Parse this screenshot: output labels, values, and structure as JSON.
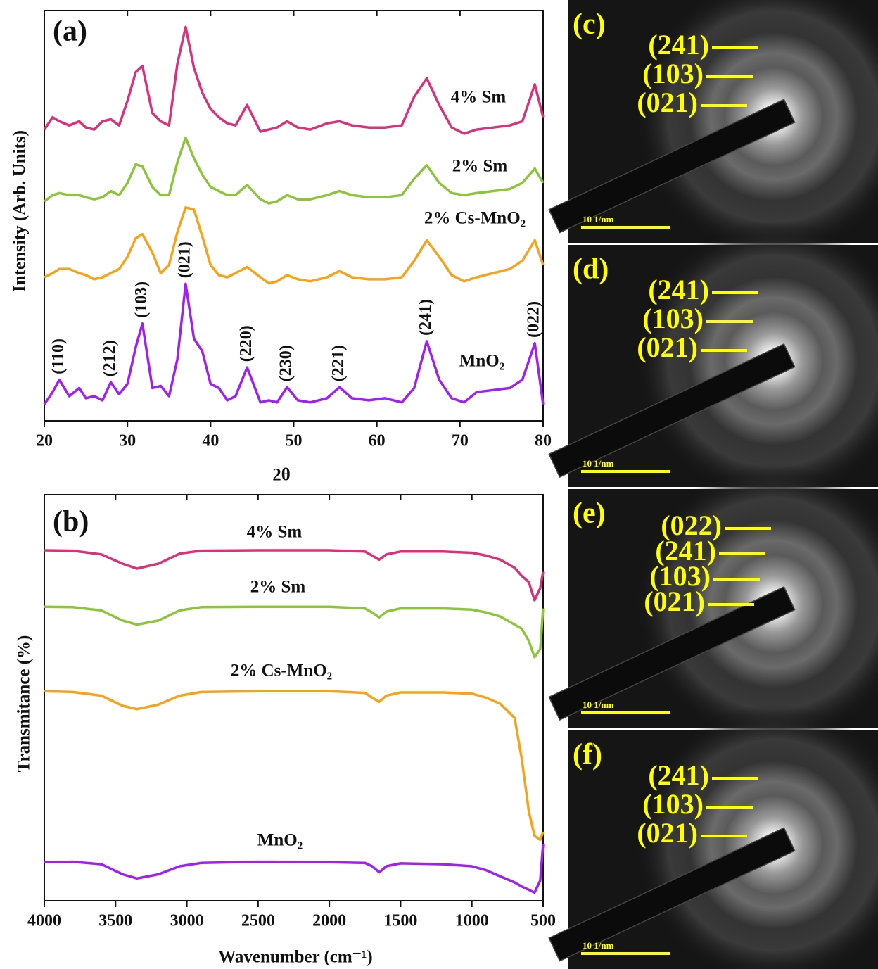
{
  "chart_data": [
    {
      "type": "line",
      "label": "(a)",
      "x_label": "2θ",
      "y_label": "Intensity (Arb. Units)",
      "xlim": [
        20,
        80
      ],
      "xticks": [
        20,
        30,
        40,
        50,
        60,
        70,
        80
      ],
      "ylim": [
        0,
        100
      ],
      "x": [
        20,
        21,
        21.8,
        23,
        24.2,
        25,
        26,
        27,
        28,
        29,
        30,
        31,
        31.8,
        33,
        34,
        35,
        36,
        37,
        38,
        39,
        40,
        41,
        42,
        43,
        44.4,
        46,
        47,
        48,
        49.2,
        50.5,
        52,
        54,
        55.5,
        57,
        59,
        61,
        63,
        64.5,
        66,
        67.5,
        69,
        70.5,
        72,
        74,
        76,
        77.5,
        79,
        80
      ],
      "series": [
        {
          "name": "4% Sm",
          "color": "#d6337a",
          "values": [
            71,
            74,
            73,
            72,
            73,
            71.5,
            71,
            73,
            73.5,
            72,
            78,
            85,
            86.5,
            75,
            73,
            72,
            87,
            96,
            86,
            80,
            76,
            74,
            72.5,
            72,
            77,
            70.5,
            71,
            71.5,
            73,
            71.5,
            71,
            72.5,
            73,
            72,
            71.5,
            71.5,
            72,
            79,
            83.5,
            77,
            71.5,
            70,
            71,
            71.5,
            72,
            73,
            82,
            74
          ]
        },
        {
          "name": "2% Sm",
          "color": "#8cc43c",
          "values": [
            53.5,
            55,
            55.5,
            55,
            55,
            54.5,
            54,
            54.5,
            56,
            55,
            58,
            62.5,
            62,
            57,
            55,
            55,
            63,
            69,
            64,
            60,
            57,
            56,
            55,
            55,
            57.5,
            54,
            53,
            53.5,
            55,
            54,
            54,
            55,
            56,
            55,
            54.5,
            54.5,
            55,
            59,
            62.3,
            58,
            55.5,
            55,
            55.5,
            56,
            56.5,
            58,
            61.5,
            58
          ]
        },
        {
          "name": "2% Cs-MnO₂",
          "color": "#f7a21b",
          "values": [
            35,
            36,
            37,
            37,
            36,
            35.5,
            34.5,
            35,
            36,
            37,
            40,
            44.5,
            45.5,
            41,
            36,
            38,
            46,
            52,
            51.5,
            45,
            38,
            35.5,
            35,
            36,
            37.5,
            35,
            33.5,
            34,
            35.5,
            34.5,
            34,
            35,
            36.5,
            35,
            34.5,
            34.5,
            35,
            39,
            44,
            40,
            35.5,
            34,
            35,
            36,
            37,
            39,
            44,
            38
          ]
        },
        {
          "name": "MnO₂",
          "color": "#a020f0",
          "values": [
            4,
            7,
            10,
            6,
            8,
            5.5,
            6,
            5,
            9.4,
            6.5,
            9,
            18,
            23.7,
            8,
            8.5,
            6,
            15,
            33.4,
            20,
            17,
            9,
            8,
            5,
            6,
            13,
            4.5,
            5,
            4.5,
            8.2,
            5,
            4.5,
            5.5,
            8.2,
            5.5,
            5,
            5.5,
            4.5,
            8,
            19.4,
            10,
            5.5,
            4.5,
            7,
            7.5,
            8,
            10,
            18.9,
            4
          ]
        }
      ],
      "annotations": [
        {
          "text": "(110)",
          "x": 21.8
        },
        {
          "text": "(212)",
          "x": 28
        },
        {
          "text": "(103)",
          "x": 31.8
        },
        {
          "text": "(021)",
          "x": 37
        },
        {
          "text": "(220)",
          "x": 44.4
        },
        {
          "text": "(230)",
          "x": 49.2
        },
        {
          "text": "(221)",
          "x": 55.5
        },
        {
          "text": "(241)",
          "x": 66
        },
        {
          "text": "(022)",
          "x": 79
        }
      ]
    },
    {
      "type": "line",
      "label": "(b)",
      "x_label": "Wavenumber (cm⁻¹)",
      "y_label": "Transmitance (%)",
      "xlim": [
        4000,
        500
      ],
      "xticks": [
        4000,
        3500,
        3000,
        2500,
        2000,
        1500,
        1000,
        500
      ],
      "ylim": [
        0,
        100
      ],
      "x": [
        4000,
        3800,
        3600,
        3450,
        3350,
        3200,
        3050,
        2900,
        2500,
        2000,
        1750,
        1700,
        1650,
        1600,
        1500,
        1200,
        1000,
        900,
        800,
        700,
        650,
        600,
        560,
        520,
        500
      ],
      "series": [
        {
          "name": "4% Sm",
          "color": "#d6337a",
          "values": [
            86.3,
            86.2,
            85.3,
            83,
            81.8,
            83,
            85.5,
            86.2,
            86.3,
            86.3,
            86,
            85,
            84,
            85.3,
            86,
            86,
            85.7,
            85,
            84,
            82,
            80,
            78.5,
            74,
            77,
            81
          ]
        },
        {
          "name": "2% Sm",
          "color": "#8cc43c",
          "values": [
            72.4,
            72.3,
            71.5,
            69,
            68,
            69,
            71.5,
            72.3,
            72.4,
            72.4,
            72,
            71,
            69.8,
            71.2,
            72,
            72,
            71.7,
            71,
            70,
            68,
            67,
            64,
            60,
            62,
            72
          ]
        },
        {
          "name": "2% Cs-MnO₂",
          "color": "#f7a21b",
          "values": [
            51.6,
            51.4,
            50.5,
            48,
            47.2,
            48.3,
            50.5,
            51.4,
            51.6,
            51.6,
            51.2,
            50,
            49,
            50.5,
            51.3,
            51.3,
            51,
            50,
            48.5,
            45,
            35,
            22,
            16,
            15,
            17
          ]
        },
        {
          "name": "MnO₂",
          "color": "#a020f0",
          "values": [
            9.5,
            9.6,
            9,
            6.5,
            5.5,
            6.5,
            8.5,
            9.3,
            9.6,
            9.5,
            9.3,
            8.5,
            7,
            8.5,
            9.2,
            9,
            8.5,
            7.5,
            6,
            4.5,
            3.5,
            2.7,
            2,
            5,
            14
          ]
        }
      ]
    }
  ],
  "saed_panels": [
    {
      "label": "(c)",
      "planes": [
        "(241)",
        "(103)",
        "(021)"
      ],
      "scale_bar": "10 1/nm"
    },
    {
      "label": "(d)",
      "planes": [
        "(241)",
        "(103)",
        "(021)"
      ],
      "scale_bar": "10 1/nm"
    },
    {
      "label": "(e)",
      "planes": [
        "(022)",
        "(241)",
        "(103)",
        "(021)"
      ],
      "scale_bar": "10 1/nm"
    },
    {
      "label": "(f)",
      "planes": [
        "(241)",
        "(103)",
        "(021)"
      ],
      "scale_bar": "10 1/nm"
    }
  ]
}
